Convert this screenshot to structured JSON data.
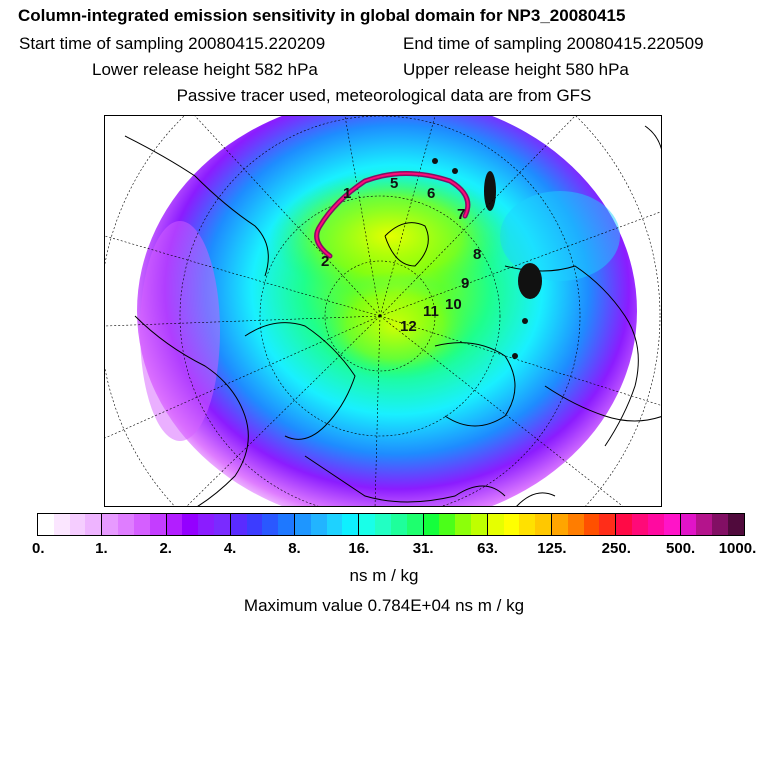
{
  "title": "Column-integrated emission sensitivity in global domain for NP3_20080415",
  "start_time": "Start time of sampling 20080415.220209",
  "end_time": "End time of sampling 20080415.220509",
  "lower_release": "Lower release height  582 hPa",
  "upper_release": "Upper release height  580 hPa",
  "tracer_note": "Passive tracer used, meteorological data are from GFS",
  "colorbar": {
    "colors": [
      "#ffffff",
      "#fbe6ff",
      "#f5cdff",
      "#eeb4ff",
      "#e79aff",
      "#df7dff",
      "#d55fff",
      "#c43dff",
      "#b21eff",
      "#9400ff",
      "#8b1cff",
      "#7a2bff",
      "#5a2bff",
      "#3c3cff",
      "#2a58ff",
      "#1e78ff",
      "#1e96ff",
      "#22b4ff",
      "#1ed2ff",
      "#0ef0ff",
      "#19ffe8",
      "#22ffc3",
      "#1eff9b",
      "#1eff6e",
      "#14ff3c",
      "#4bff19",
      "#8cff0a",
      "#bfff00",
      "#e6ff00",
      "#ffff00",
      "#ffe100",
      "#ffc800",
      "#ffa500",
      "#ff7d00",
      "#ff5000",
      "#ff2d19",
      "#ff0a46",
      "#ff0a78",
      "#ff0aa0",
      "#ff14c8",
      "#e114c8",
      "#b4148c",
      "#820f64",
      "#500a3c"
    ],
    "tick_labels": [
      "0.",
      "1.",
      "2.",
      "4.",
      "8.",
      "16.",
      "31.",
      "63.",
      "125.",
      "250.",
      "500.",
      "1000."
    ]
  },
  "unit_label": "ns m / kg",
  "max_value_text": "Maximum value  0.784E+04 ns m / kg",
  "trajectory_labels": [
    "1",
    "2",
    "5",
    "6",
    "7",
    "8",
    "9",
    "10",
    "11",
    "12"
  ]
}
